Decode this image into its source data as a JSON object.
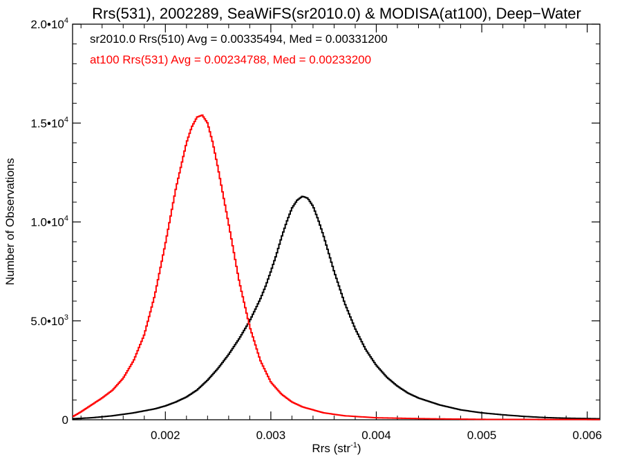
{
  "chart_data": {
    "type": "line",
    "title": "Rrs(531), 2002289, SeaWiFS(sr2010.0) & MODISA(at100), Deep−Water",
    "xlabel": "Rrs (str",
    "xlabel_sup": "-1",
    "xlabel_suffix": ")",
    "ylabel": "Number of Observations",
    "xlim": [
      0.00112,
      0.00612
    ],
    "ylim": [
      0,
      20000
    ],
    "x_ticks": [
      0.002,
      0.003,
      0.004,
      0.005,
      0.006
    ],
    "x_tick_labels": [
      "0.002",
      "0.003",
      "0.004",
      "0.005",
      "0.006"
    ],
    "y_ticks": [
      {
        "value": 0,
        "mantissa": "0",
        "exp": ""
      },
      {
        "value": 5000,
        "mantissa": "5.0•10",
        "exp": "3"
      },
      {
        "value": 10000,
        "mantissa": "1.0•10",
        "exp": "4"
      },
      {
        "value": 15000,
        "mantissa": "1.5•10",
        "exp": "4"
      },
      {
        "value": 20000,
        "mantissa": "2.0•10",
        "exp": "4"
      }
    ],
    "grid": false,
    "legend_position": "top-left",
    "series": [
      {
        "name": "sr2010.0 Rrs(510) Avg = 0.00335494, Med = 0.00331200",
        "color": "#000000",
        "x": [
          0.00112,
          0.0013,
          0.0015,
          0.0017,
          0.0019,
          0.002,
          0.0021,
          0.0022,
          0.0023,
          0.0024,
          0.0025,
          0.0026,
          0.0027,
          0.0028,
          0.0029,
          0.00295,
          0.003,
          0.00305,
          0.0031,
          0.00315,
          0.0032,
          0.00325,
          0.0033,
          0.00335,
          0.0034,
          0.00345,
          0.0035,
          0.00355,
          0.0036,
          0.0037,
          0.0038,
          0.0039,
          0.004,
          0.0041,
          0.0042,
          0.0043,
          0.0044,
          0.0046,
          0.0048,
          0.005,
          0.0052,
          0.0054,
          0.0056,
          0.0058,
          0.00612
        ],
        "y": [
          50,
          100,
          200,
          350,
          550,
          700,
          900,
          1150,
          1500,
          2000,
          2600,
          3300,
          4100,
          5000,
          6100,
          6750,
          7500,
          8300,
          9200,
          10000,
          10700,
          11100,
          11300,
          11200,
          10800,
          10100,
          9300,
          8400,
          7500,
          5900,
          4600,
          3550,
          2750,
          2150,
          1700,
          1350,
          1100,
          750,
          500,
          350,
          250,
          170,
          110,
          80,
          50
        ]
      },
      {
        "name": "at100 Rrs(531) Avg = 0.00234788, Med = 0.00233200",
        "color": "#ff0000",
        "x": [
          0.00112,
          0.0012,
          0.0013,
          0.0014,
          0.0015,
          0.0016,
          0.0017,
          0.0018,
          0.0019,
          0.002,
          0.0021,
          0.0022,
          0.00225,
          0.0023,
          0.00235,
          0.0024,
          0.00245,
          0.0025,
          0.0026,
          0.0027,
          0.0028,
          0.0029,
          0.003,
          0.0031,
          0.0032,
          0.0033,
          0.0035,
          0.0037,
          0.004,
          0.0045,
          0.005,
          0.00612
        ],
        "y": [
          150,
          400,
          750,
          1100,
          1500,
          2100,
          3000,
          4300,
          6300,
          8900,
          11700,
          14000,
          14800,
          15300,
          15400,
          15000,
          14000,
          12700,
          9900,
          7000,
          4700,
          3000,
          1900,
          1300,
          900,
          650,
          350,
          200,
          100,
          50,
          20,
          10
        ]
      }
    ]
  }
}
